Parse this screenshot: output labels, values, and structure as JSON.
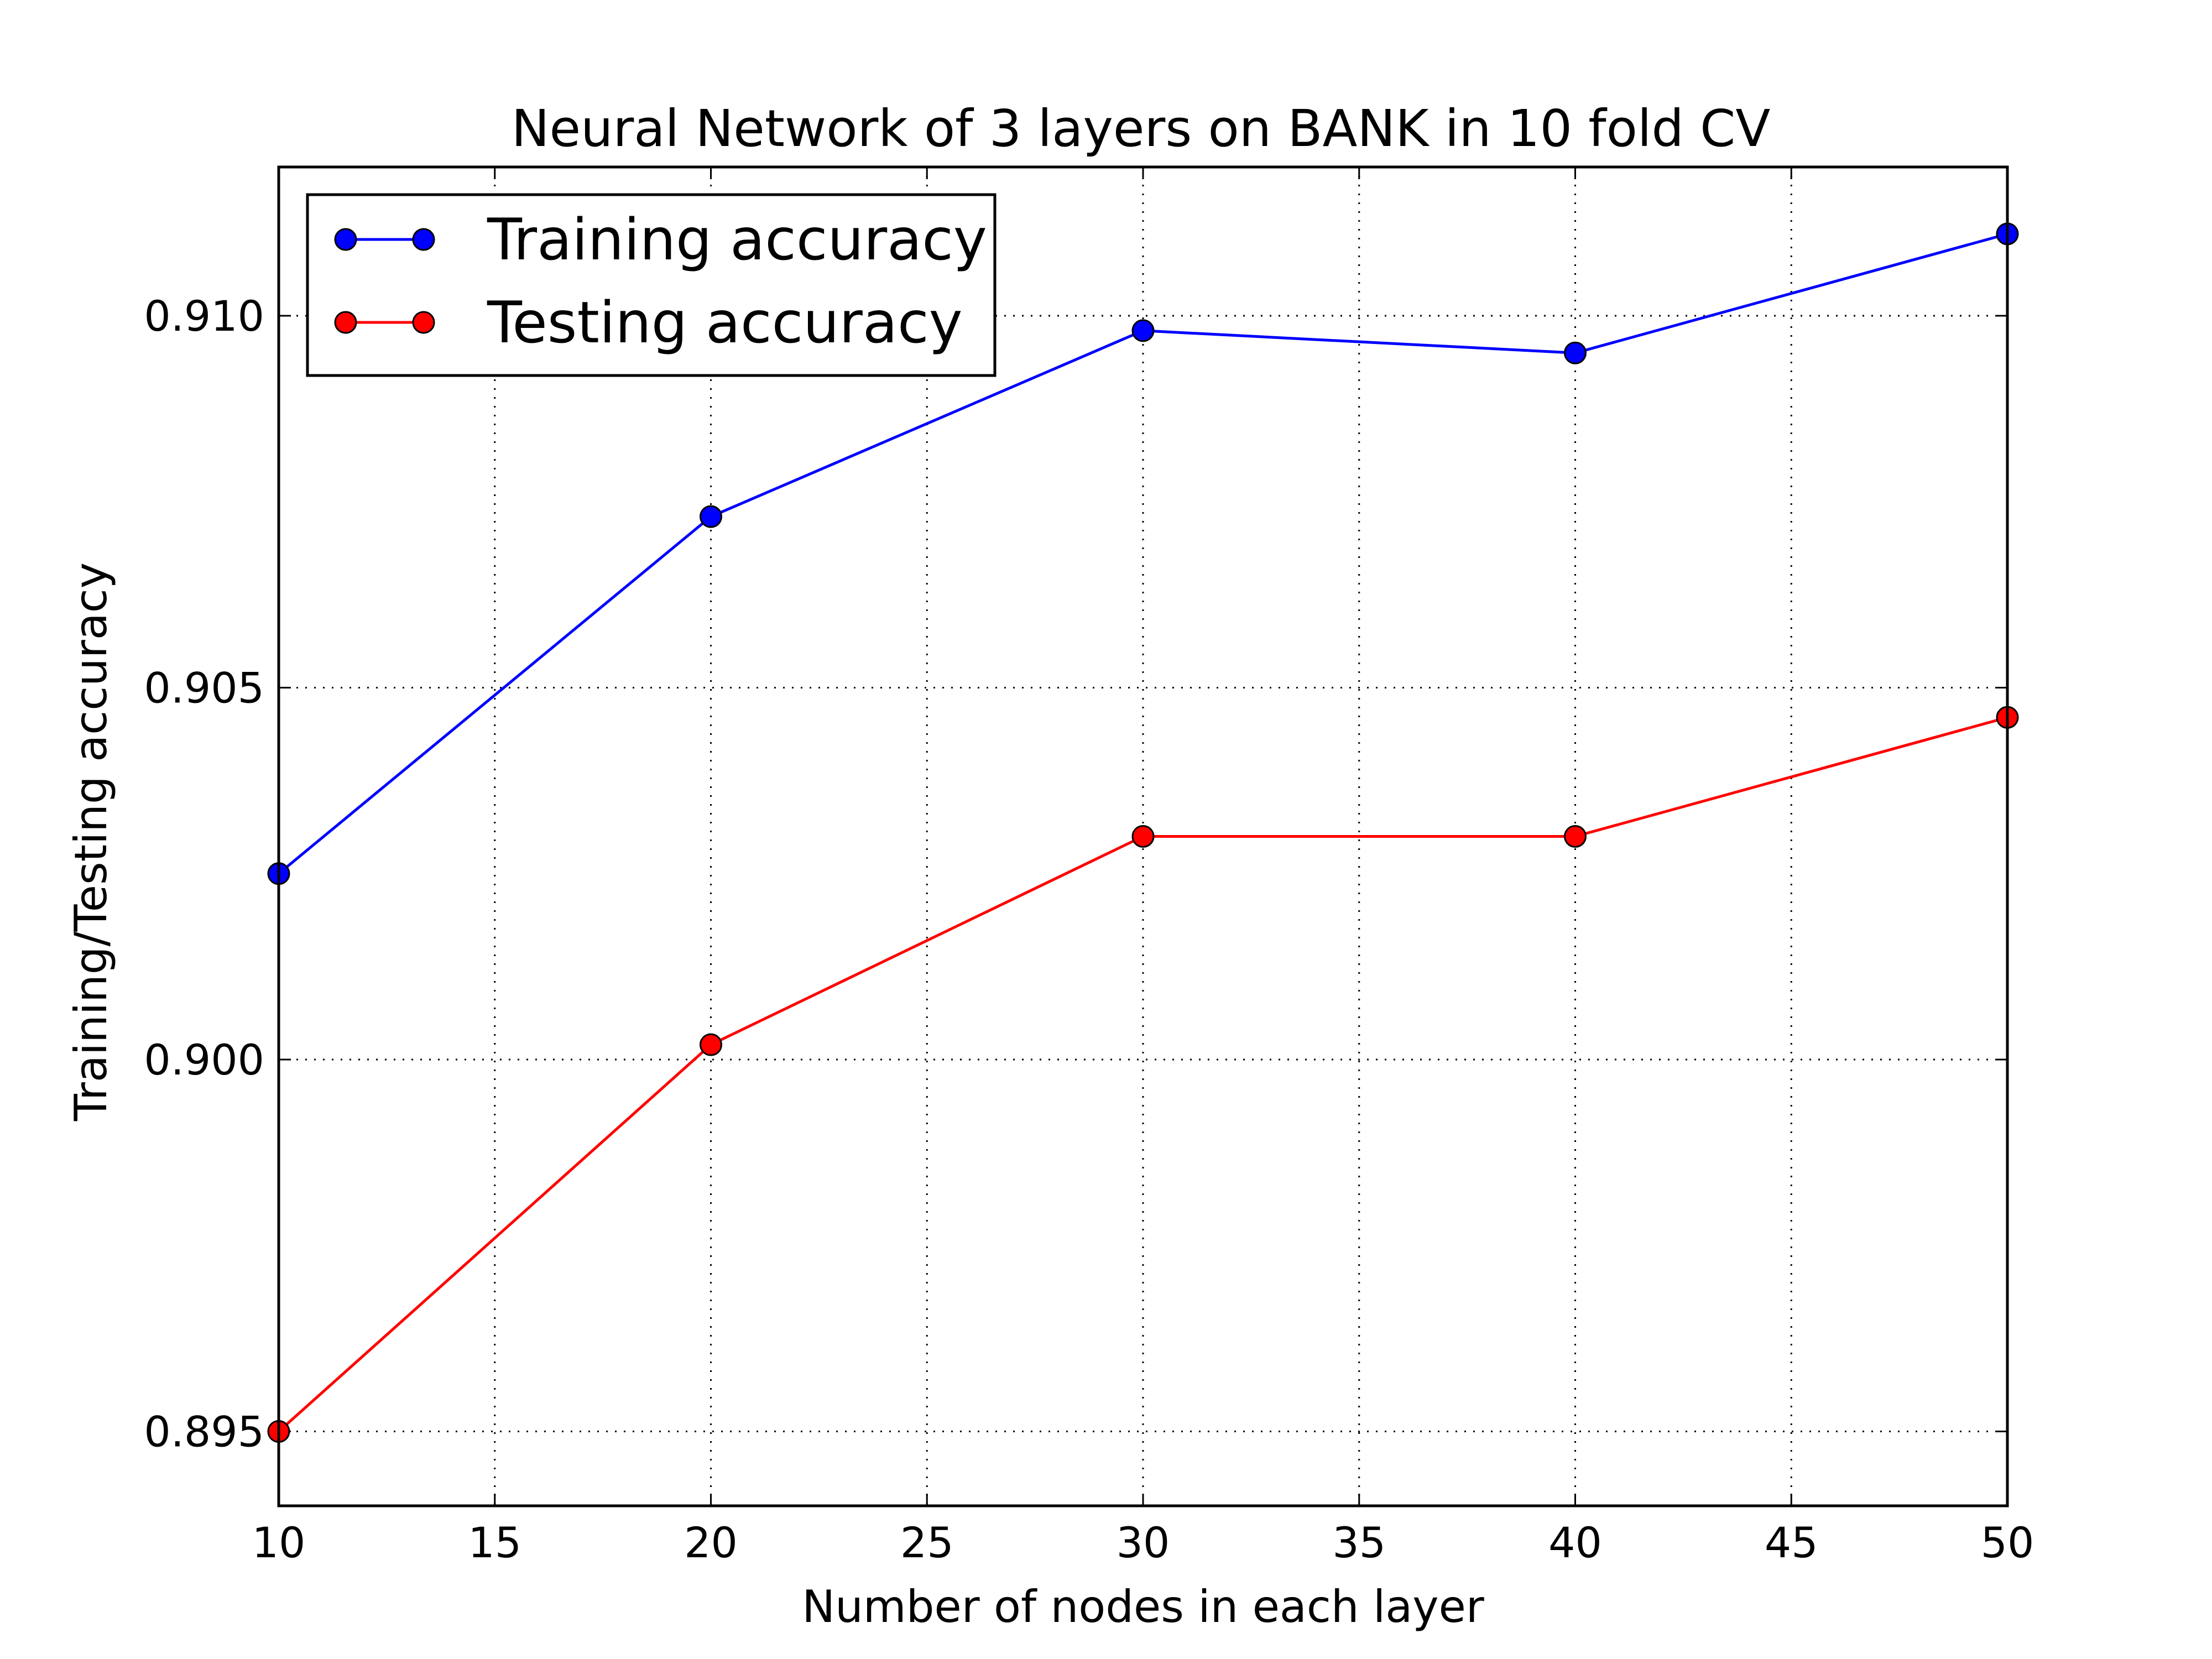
{
  "chart_data": {
    "type": "line",
    "title": "Neural Network of 3 layers on BANK in 10 fold CV",
    "xlabel": "Number of nodes in each layer",
    "ylabel": "Training/Testing accuracy",
    "xlim": [
      10,
      50
    ],
    "ylim": [
      0.894,
      0.912
    ],
    "xticks": [
      10,
      15,
      20,
      25,
      30,
      35,
      40,
      45,
      50
    ],
    "yticks": [
      0.895,
      0.9,
      0.905,
      0.91
    ],
    "ytick_labels": [
      "0.895",
      "0.900",
      "0.905",
      "0.910"
    ],
    "grid": true,
    "legend_position": "top-left",
    "x": [
      10,
      20,
      30,
      40,
      50
    ],
    "series": [
      {
        "name": "Training accuracy",
        "color": "#0000ff",
        "values": [
          0.9025,
          0.9073,
          0.9098,
          0.9095,
          0.9111
        ]
      },
      {
        "name": "Testing accuracy",
        "color": "#ff0000",
        "values": [
          0.895,
          0.9002,
          0.903,
          0.903,
          0.9046
        ]
      }
    ]
  }
}
